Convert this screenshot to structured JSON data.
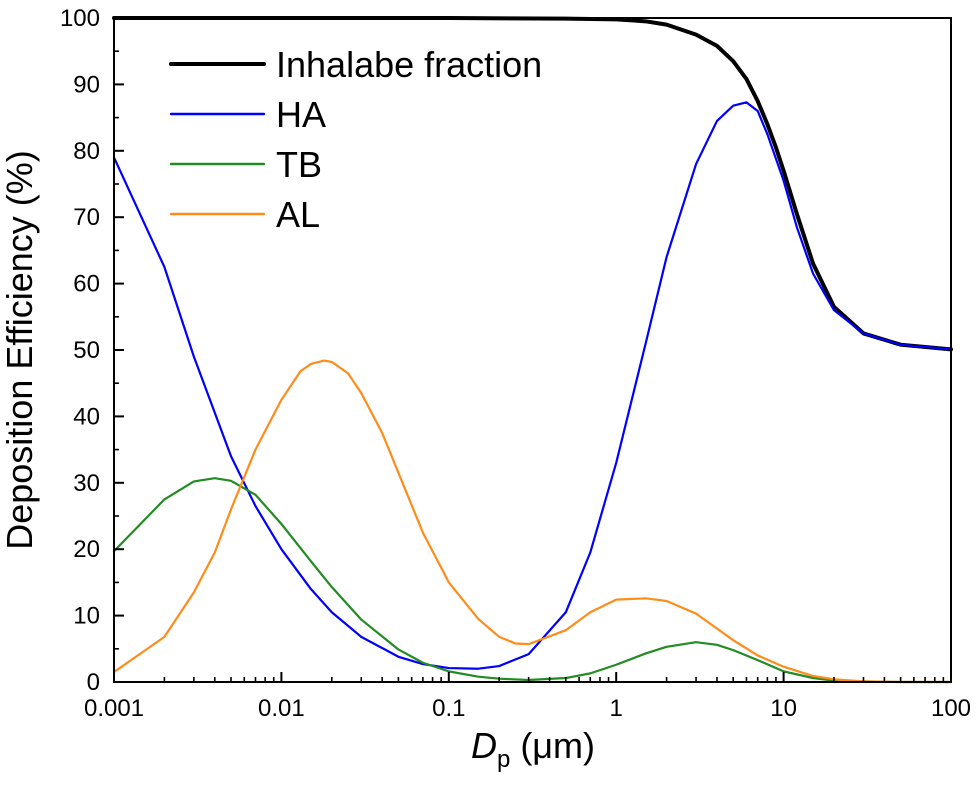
{
  "chart_data": {
    "type": "line",
    "title": "",
    "xlabel": "Dp (μm)",
    "xlabel_main": "D",
    "xlabel_sub": "p",
    "xlabel_unit": " (μm)",
    "ylabel": "Deposition Efficiency (%)",
    "xscale": "log",
    "xlim": [
      0.001,
      100
    ],
    "ylim": [
      0,
      100
    ],
    "xticks": [
      {
        "value": 0.001,
        "label": "0.001"
      },
      {
        "value": 0.01,
        "label": "0.01"
      },
      {
        "value": 0.1,
        "label": "0.1"
      },
      {
        "value": 1,
        "label": "1"
      },
      {
        "value": 10,
        "label": "10"
      },
      {
        "value": 100,
        "label": "100"
      }
    ],
    "yticks": [
      {
        "value": 0,
        "label": "0"
      },
      {
        "value": 10,
        "label": "10"
      },
      {
        "value": 20,
        "label": "20"
      },
      {
        "value": 30,
        "label": "30"
      },
      {
        "value": 40,
        "label": "40"
      },
      {
        "value": 50,
        "label": "50"
      },
      {
        "value": 60,
        "label": "60"
      },
      {
        "value": 70,
        "label": "70"
      },
      {
        "value": 80,
        "label": "80"
      },
      {
        "value": 90,
        "label": "90"
      },
      {
        "value": 100,
        "label": "100"
      }
    ],
    "legend_position": "top-left",
    "grid": false,
    "series": [
      {
        "name": "Inhalabe fraction",
        "color": "#000000",
        "width": "thick",
        "x": [
          0.001,
          0.01,
          0.1,
          0.5,
          1,
          1.5,
          2,
          3,
          4,
          5,
          6,
          7,
          8,
          9,
          10,
          12,
          15,
          20,
          30,
          50,
          100
        ],
        "y": [
          100,
          100,
          100,
          99.9,
          99.8,
          99.5,
          99,
          97.5,
          95.8,
          93.5,
          90.8,
          87.5,
          84,
          80.5,
          77,
          70.5,
          63,
          56.5,
          52.5,
          50.8,
          50.1
        ]
      },
      {
        "name": "HA",
        "color": "#0000ff",
        "width": "normal",
        "x": [
          0.001,
          0.002,
          0.003,
          0.005,
          0.007,
          0.01,
          0.015,
          0.02,
          0.03,
          0.05,
          0.07,
          0.1,
          0.15,
          0.2,
          0.3,
          0.5,
          0.7,
          1,
          1.5,
          2,
          3,
          4,
          5,
          6,
          7,
          8,
          10,
          12,
          15,
          20,
          30,
          50,
          100
        ],
        "y": [
          79,
          62.5,
          49,
          34,
          26.5,
          20,
          14,
          10.5,
          6.8,
          3.8,
          2.7,
          2.1,
          2,
          2.4,
          4.2,
          10.5,
          19.5,
          33,
          51,
          64,
          78,
          84.5,
          86.8,
          87.3,
          86,
          82.5,
          75.5,
          68.5,
          61.5,
          56,
          52.5,
          50.8,
          50.1
        ]
      },
      {
        "name": "TB",
        "color": "#228b22",
        "width": "normal",
        "x": [
          0.001,
          0.002,
          0.003,
          0.004,
          0.005,
          0.007,
          0.01,
          0.015,
          0.02,
          0.03,
          0.05,
          0.07,
          0.1,
          0.15,
          0.2,
          0.3,
          0.5,
          0.7,
          1,
          1.5,
          2,
          3,
          4,
          5,
          7,
          10,
          15,
          20,
          30,
          50,
          100
        ],
        "y": [
          19.7,
          27.5,
          30.2,
          30.7,
          30.3,
          28.2,
          23.8,
          18.2,
          14.3,
          9.4,
          4.9,
          2.9,
          1.6,
          0.8,
          0.5,
          0.3,
          0.6,
          1.3,
          2.6,
          4.3,
          5.3,
          6,
          5.6,
          4.8,
          3.3,
          1.6,
          0.6,
          0.2,
          0.1,
          0,
          0
        ]
      },
      {
        "name": "AL",
        "color": "#ff8c1a",
        "width": "normal",
        "x": [
          0.001,
          0.002,
          0.003,
          0.004,
          0.005,
          0.007,
          0.01,
          0.013,
          0.015,
          0.018,
          0.02,
          0.025,
          0.03,
          0.04,
          0.05,
          0.07,
          0.1,
          0.15,
          0.2,
          0.25,
          0.3,
          0.5,
          0.7,
          1,
          1.5,
          2,
          3,
          5,
          7,
          10,
          15,
          20,
          30,
          50,
          100
        ],
        "y": [
          1.5,
          6.8,
          13.5,
          19.5,
          26,
          35,
          42.5,
          46.8,
          47.9,
          48.4,
          48.2,
          46.5,
          43.5,
          37.5,
          31.5,
          22.5,
          15,
          9.5,
          6.8,
          5.8,
          5.7,
          7.8,
          10.5,
          12.4,
          12.6,
          12.2,
          10.3,
          6.3,
          4,
          2.3,
          0.9,
          0.4,
          0.1,
          0,
          0
        ]
      }
    ]
  }
}
